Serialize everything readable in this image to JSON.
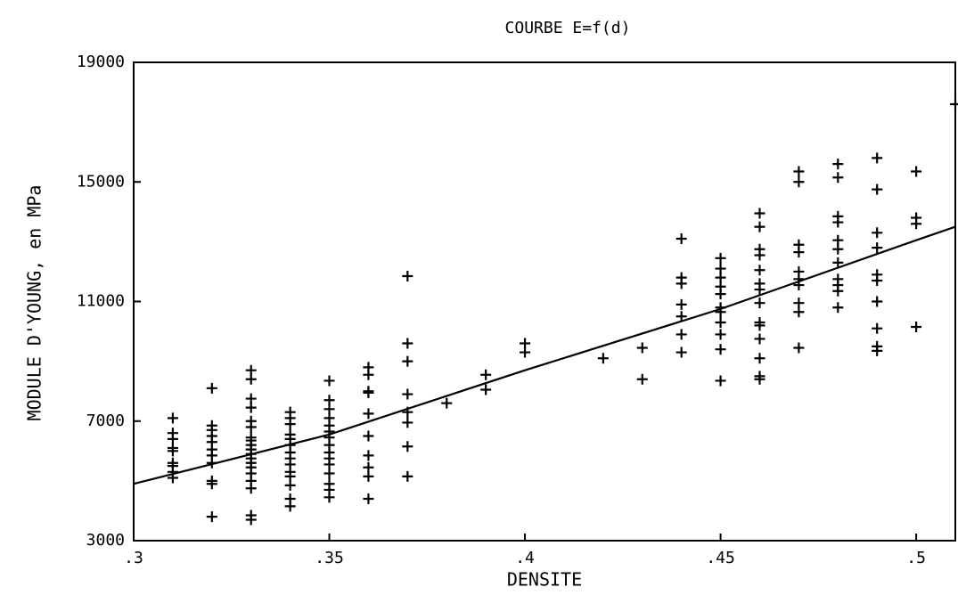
{
  "chart_data": {
    "type": "scatter",
    "title": "COURBE E=f(d)",
    "x_label": "DENSITE",
    "y_label": "MODULE D'YOUNG, en MPa",
    "xlim": [
      0.3,
      0.51
    ],
    "ylim": [
      3000,
      19000
    ],
    "xticks": [
      {
        "value": 0.3,
        "label": ".3"
      },
      {
        "value": 0.35,
        "label": ".35"
      },
      {
        "value": 0.4,
        "label": ".4"
      },
      {
        "value": 0.45,
        "label": ".45"
      },
      {
        "value": 0.5,
        "label": ".5"
      }
    ],
    "yticks": [
      3000,
      7000,
      11000,
      15000,
      19000
    ],
    "series": [
      {
        "type": "scatter",
        "color": "#000000",
        "x": [
          0.31,
          0.31,
          0.31,
          0.31,
          0.31,
          0.31,
          0.31,
          0.31,
          0.31,
          0.32,
          0.32,
          0.32,
          0.32,
          0.32,
          0.32,
          0.32,
          0.32,
          0.32,
          0.32,
          0.32,
          0.33,
          0.33,
          0.33,
          0.33,
          0.33,
          0.33,
          0.33,
          0.33,
          0.33,
          0.33,
          0.33,
          0.33,
          0.33,
          0.33,
          0.33,
          0.33,
          0.33,
          0.33,
          0.33,
          0.34,
          0.34,
          0.34,
          0.34,
          0.34,
          0.34,
          0.34,
          0.34,
          0.34,
          0.34,
          0.34,
          0.34,
          0.34,
          0.34,
          0.35,
          0.35,
          0.35,
          0.35,
          0.35,
          0.35,
          0.35,
          0.35,
          0.35,
          0.35,
          0.35,
          0.35,
          0.35,
          0.35,
          0.35,
          0.36,
          0.36,
          0.36,
          0.36,
          0.36,
          0.36,
          0.36,
          0.36,
          0.36,
          0.36,
          0.37,
          0.37,
          0.37,
          0.37,
          0.37,
          0.37,
          0.37,
          0.37,
          0.38,
          0.39,
          0.39,
          0.4,
          0.4,
          0.42,
          0.43,
          0.43,
          0.44,
          0.44,
          0.44,
          0.44,
          0.44,
          0.44,
          0.44,
          0.45,
          0.45,
          0.45,
          0.45,
          0.45,
          0.45,
          0.45,
          0.45,
          0.45,
          0.45,
          0.45,
          0.46,
          0.46,
          0.46,
          0.46,
          0.46,
          0.46,
          0.46,
          0.46,
          0.46,
          0.46,
          0.46,
          0.46,
          0.46,
          0.46,
          0.47,
          0.47,
          0.47,
          0.47,
          0.47,
          0.47,
          0.47,
          0.47,
          0.47,
          0.47,
          0.48,
          0.48,
          0.48,
          0.48,
          0.48,
          0.48,
          0.48,
          0.48,
          0.48,
          0.48,
          0.48,
          0.49,
          0.49,
          0.49,
          0.49,
          0.49,
          0.49,
          0.49,
          0.49,
          0.49,
          0.49,
          0.5,
          0.5,
          0.5,
          0.5,
          0.51
        ],
        "values": [
          7100,
          6600,
          6400,
          6100,
          6000,
          5600,
          5500,
          5300,
          5100,
          8100,
          6850,
          6700,
          6500,
          6300,
          6050,
          5850,
          5600,
          5000,
          4900,
          3800,
          8700,
          8400,
          7750,
          7450,
          7000,
          6800,
          6450,
          6350,
          6200,
          6050,
          5900,
          5750,
          5600,
          5450,
          5250,
          5000,
          4750,
          3850,
          3700,
          7300,
          7100,
          6900,
          6550,
          6400,
          6200,
          5950,
          5750,
          5550,
          5300,
          5150,
          4850,
          4400,
          4150,
          8350,
          7700,
          7400,
          7100,
          6850,
          6650,
          6450,
          6200,
          5950,
          5750,
          5550,
          5250,
          4900,
          4700,
          4450,
          8800,
          8550,
          8000,
          7950,
          7250,
          6500,
          5850,
          5450,
          5150,
          4400,
          11850,
          9600,
          9000,
          7900,
          7300,
          6950,
          6150,
          5150,
          7600,
          8550,
          8050,
          9600,
          9300,
          9100,
          9450,
          8400,
          13100,
          11800,
          11600,
          10900,
          10500,
          9900,
          9300,
          12450,
          12100,
          11800,
          11500,
          11250,
          10800,
          10650,
          10300,
          9900,
          9400,
          8350,
          13950,
          13500,
          12750,
          12550,
          12050,
          11600,
          11400,
          10950,
          10300,
          10200,
          9750,
          9100,
          8500,
          8400,
          15350,
          15000,
          12900,
          12650,
          12000,
          11750,
          11550,
          10950,
          10650,
          9450,
          15600,
          15150,
          13850,
          13650,
          13050,
          12750,
          12300,
          11750,
          11550,
          11350,
          10800,
          15800,
          14750,
          13300,
          12800,
          11900,
          11700,
          11000,
          10100,
          9500,
          9350,
          15350,
          13800,
          13600,
          10150,
          17600
        ]
      },
      {
        "type": "line",
        "color": "#000000",
        "x": [
          0.3,
          0.35,
          0.4,
          0.45,
          0.5,
          0.51
        ],
        "values": [
          4900,
          6550,
          8700,
          10750,
          13050,
          13500
        ]
      }
    ]
  }
}
